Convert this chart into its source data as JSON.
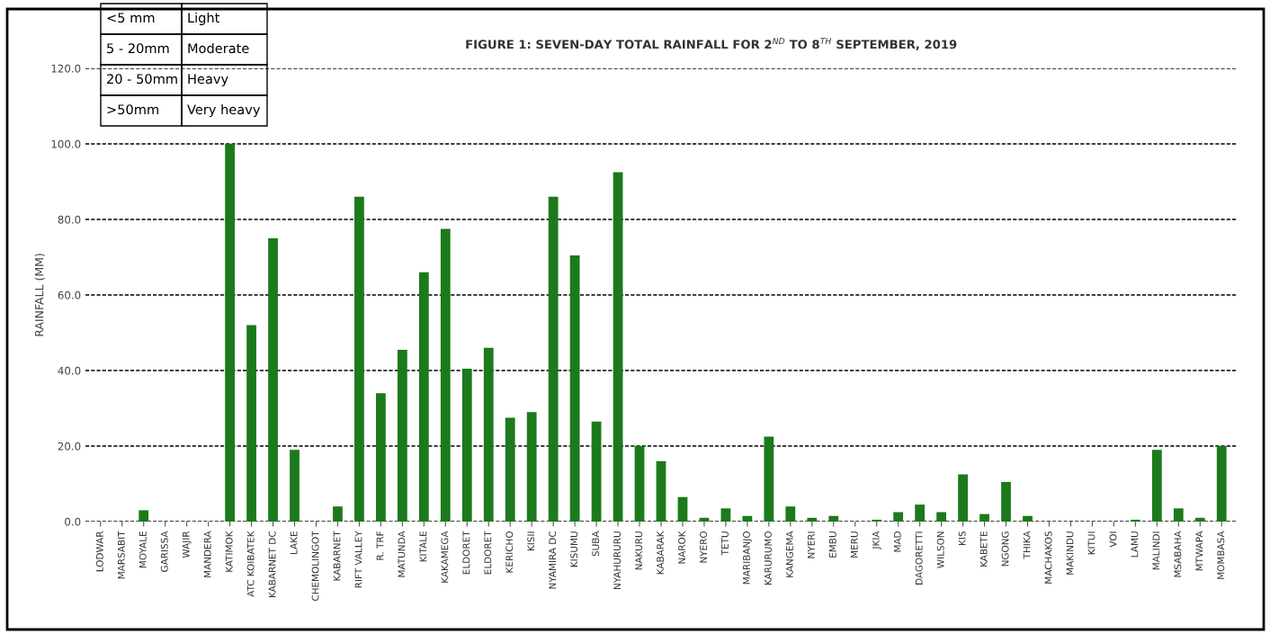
{
  "chart_data": {
    "type": "bar",
    "title": "FIGURE 1: SEVEN-DAY TOTAL RAINFALL FOR 2$^{ND}$ TO 8$^{TH}$ SEPTEMBER, 2019",
    "ylabel": "RAINFALL (MM)",
    "categories": [
      "LODWAR",
      "MARSABIT",
      "MOYALE",
      "GARISSA",
      "WAJIR",
      "MANDERA",
      "KATIMOK",
      "ATC KOIBATEK",
      "KABARNET DC",
      "LAKE",
      "CHEMOLINGOT",
      "KABARNET",
      "RIFT VALLEY",
      "R. TRF",
      "MATUNDA",
      "KITALE",
      "KAKAMEGA",
      "ELDORET",
      "ELDORET",
      "KERICHO",
      "KISII",
      "NYAMIRA DC",
      "KISUMU",
      "SUBA",
      "NYAHURURU",
      "NAKURU",
      "KABARAK",
      "NAROK",
      "NYERO",
      "TETU",
      "MARIBANJO",
      "KARURUMO",
      "KANGEMA",
      "NYERI",
      "EMBU",
      "MERU",
      "JKIA",
      "MAD",
      "DAGORETTI",
      "WILSON",
      "KIS",
      "KABETE",
      "NGONG",
      "THIKA",
      "MACHAKOS",
      "MAKINDU",
      "KITUI",
      "VOI",
      "LAMU",
      "MALINDI",
      "MSABAHA",
      "MTWAPA",
      "MOMBASA"
    ],
    "values": [
      0,
      0,
      3,
      0,
      0,
      0,
      100,
      52,
      75,
      19,
      0,
      4,
      86,
      34,
      45.5,
      66,
      77.5,
      40.5,
      46,
      27.5,
      29,
      86,
      70.5,
      26.5,
      92.5,
      20,
      16,
      6.5,
      1,
      3.5,
      1.5,
      22.5,
      4,
      1,
      1.5,
      0,
      0.5,
      2.5,
      4.5,
      2.5,
      12.5,
      2,
      10.5,
      1.5,
      0,
      0,
      0,
      0,
      0.5,
      19,
      3.5,
      1,
      20
    ],
    "color": "#1b7a1b",
    "ylim": [
      0,
      120
    ],
    "yticks": [
      {
        "value": 0,
        "label": "0.0"
      },
      {
        "value": 20,
        "label": "20.0"
      },
      {
        "value": 40,
        "label": "40.0"
      },
      {
        "value": 60,
        "label": "60.0"
      },
      {
        "value": 80,
        "label": "80.0"
      },
      {
        "value": 100,
        "label": "100.0"
      },
      {
        "value": 120,
        "label": "120.0"
      }
    ],
    "grid": "y",
    "annotations": [
      "<5 mm",
      "Light",
      "5 - 20mm",
      "Moderate",
      "20 - 50mm",
      "Heavy",
      ">50mm",
      "Very heavy"
    ]
  }
}
